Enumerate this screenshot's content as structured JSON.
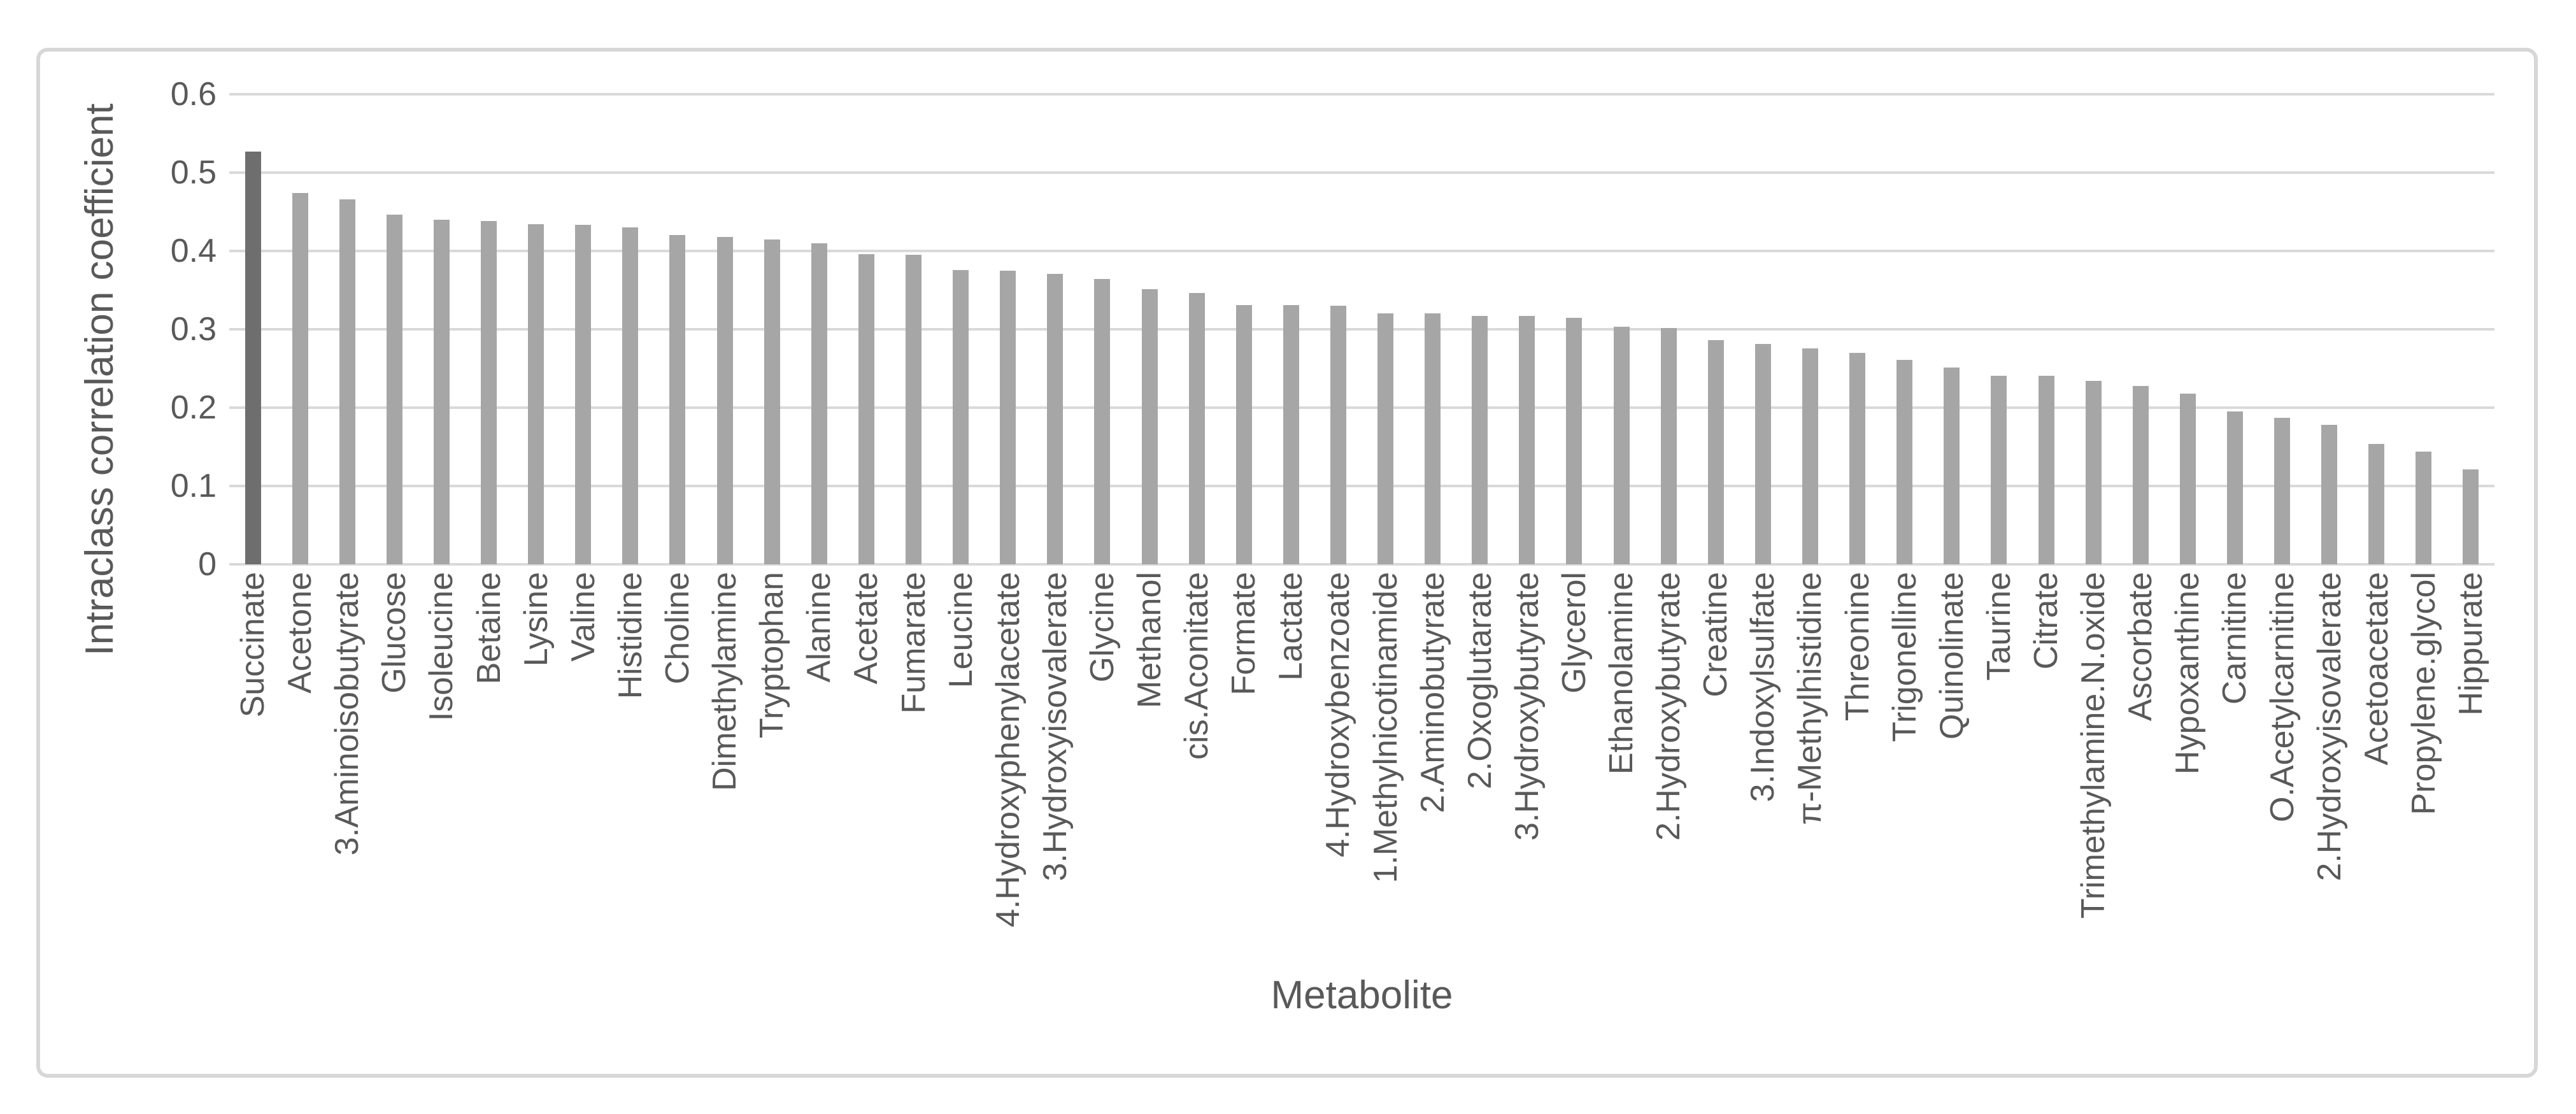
{
  "figure": {
    "background": "#ffffff",
    "border_color": "#d7d7d7"
  },
  "chart_data": {
    "type": "bar",
    "title": "",
    "xlabel": "Metabolite",
    "ylabel": "Intraclass correlation coefficient",
    "ylim": [
      0,
      0.6
    ],
    "y_tick_labels": [
      "0",
      "0.1",
      "0.2",
      "0.3",
      "0.4",
      "0.5",
      "0.6"
    ],
    "grid": true,
    "legend_position": "none",
    "bar_color": "#a6a6a6",
    "highlight_color": "#6e6e6e",
    "highlight_index": 0,
    "gridline_color": "#d9d9d9",
    "text_color": "#595959",
    "categories": [
      "Succinate",
      "Acetone",
      "3.Aminoisobutyrate",
      "Glucose",
      "Isoleucine",
      "Betaine",
      "Lysine",
      "Valine",
      "Histidine",
      "Choline",
      "Dimethylamine",
      "Tryptophan",
      "Alanine",
      "Acetate",
      "Fumarate",
      "Leucine",
      "4.Hydroxyphenylacetate",
      "3.Hydroxyisovalerate",
      "Glycine",
      "Methanol",
      "cis.Aconitate",
      "Formate",
      "Lactate",
      "4.Hydroxybenzoate",
      "1.Methylnicotinamide",
      "2.Aminobutyrate",
      "2.Oxoglutarate",
      "3.Hydroxybutyrate",
      "Glycerol",
      "Ethanolamine",
      "2.Hydroxybutyrate",
      "Creatine",
      "3.Indoxylsulfate",
      "π-Methylhistidine",
      "Threonine",
      "Trigonelline",
      "Quinolinate",
      "Taurine",
      "Citrate",
      "Trimethylamine.N.oxide",
      "Ascorbate",
      "Hypoxanthine",
      "Carnitine",
      "O.Acetylcarnitine",
      "2.Hydroxyisovalerate",
      "Acetoacetate",
      "Propylene.glycol",
      "Hippurate"
    ],
    "values": [
      0.527,
      0.474,
      0.466,
      0.446,
      0.44,
      0.438,
      0.434,
      0.433,
      0.43,
      0.42,
      0.418,
      0.415,
      0.41,
      0.396,
      0.395,
      0.376,
      0.375,
      0.371,
      0.364,
      0.351,
      0.346,
      0.331,
      0.331,
      0.33,
      0.32,
      0.32,
      0.317,
      0.317,
      0.315,
      0.303,
      0.302,
      0.286,
      0.281,
      0.276,
      0.27,
      0.261,
      0.251,
      0.241,
      0.241,
      0.234,
      0.228,
      0.218,
      0.195,
      0.187,
      0.178,
      0.154,
      0.144,
      0.121
    ]
  }
}
